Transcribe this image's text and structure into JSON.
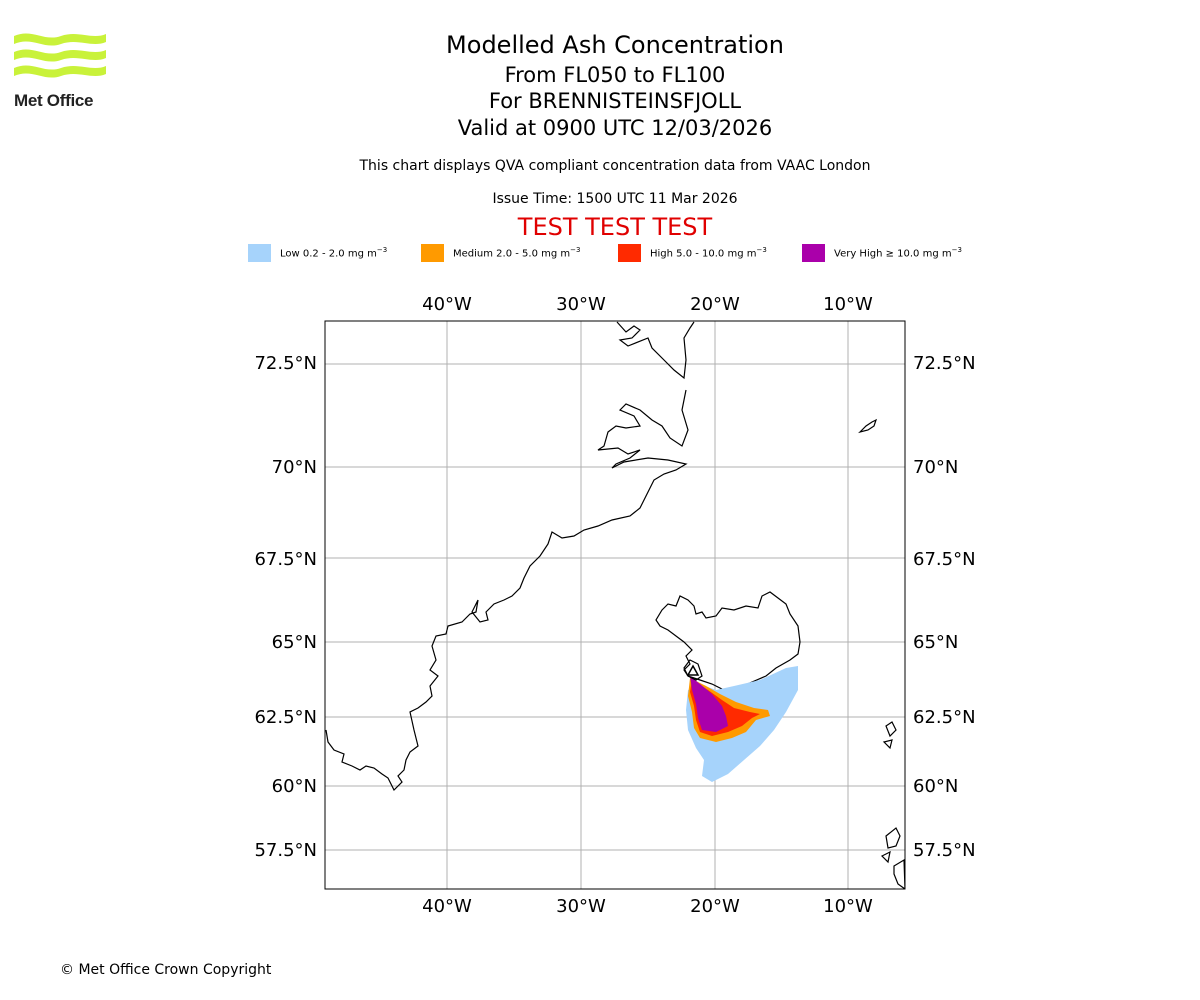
{
  "header": {
    "logo_text": "Met Office",
    "title": "Modelled Ash Concentration",
    "level_range": "From FL050 to FL100",
    "volcano": "For BRENNISTEINSFJOLL",
    "valid": "Valid at 0900 UTC 12/03/2026",
    "subtitle": "This chart displays QVA compliant concentration data from VAAC London",
    "issue_time": "Issue Time: 1500 UTC 11 Mar 2026",
    "test_banner": "TEST TEST TEST"
  },
  "legend": [
    {
      "label": "Low 0.2 - 2.0 mg m",
      "color": "#a6d3fb"
    },
    {
      "label": "Medium 2.0 - 5.0 mg m",
      "color": "#ff9a00"
    },
    {
      "label": "High 5.0 - 10.0 mg m",
      "color": "#ff2a00"
    },
    {
      "label": "Very High ≥ 10.0 mg m",
      "color": "#aa00aa"
    }
  ],
  "legend_unit_exp": "−3",
  "map": {
    "lon_labels": [
      "40°W",
      "30°W",
      "20°W",
      "10°W"
    ],
    "lat_labels": [
      "72.5°N",
      "70°N",
      "67.5°N",
      "65°N",
      "62.5°N",
      "60°N",
      "57.5°N"
    ],
    "volcano_marker": "triangle"
  },
  "footer": "© Met Office Crown Copyright"
}
